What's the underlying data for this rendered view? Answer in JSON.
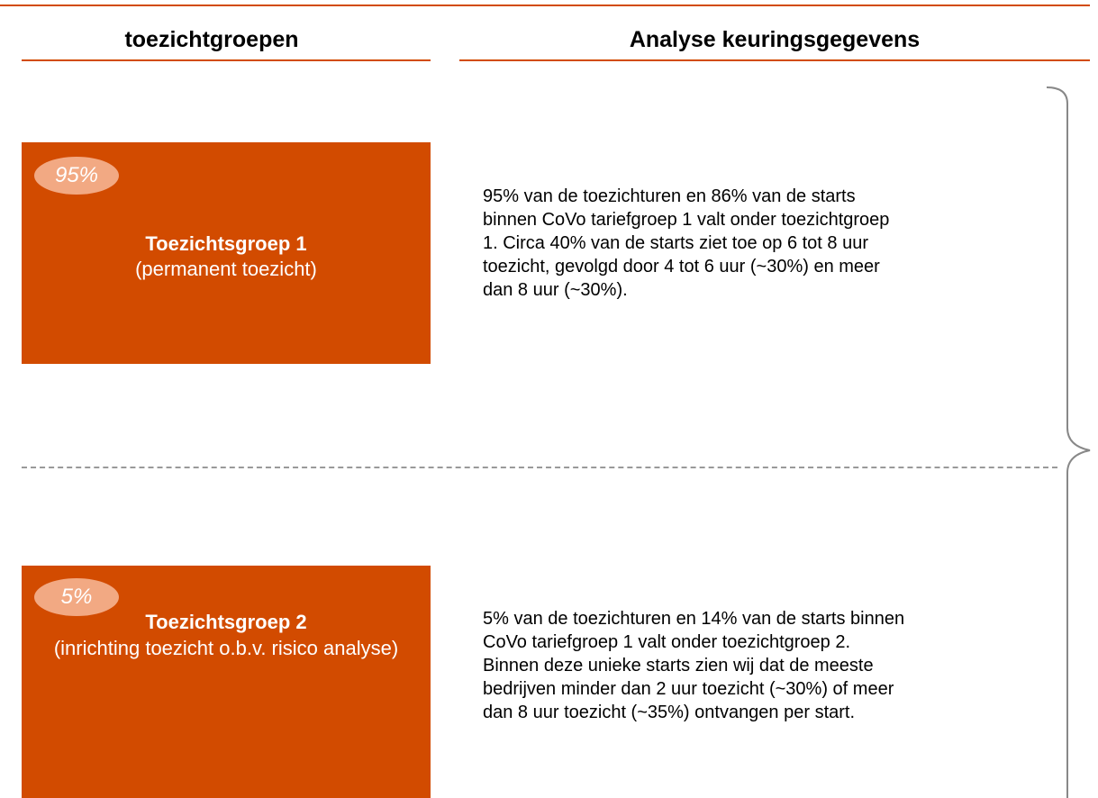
{
  "headers": {
    "left": "toezichtgroepen",
    "right": "Analyse keuringsgegevens"
  },
  "groups": [
    {
      "badge": "95%",
      "title": "Toezichtsgroep 1",
      "subtitle": "(permanent toezicht)",
      "lines": [
        "95% van de toezichturen en 86% van de starts",
        "binnen CoVo tariefgroep 1 valt onder toezichtgroep",
        "1. Circa 40% van de starts ziet toe op 6 tot 8 uur",
        "toezicht, gevolgd door 4 tot 6 uur (~30%) en meer",
        "dan 8 uur (~30%)."
      ]
    },
    {
      "badge": "5%",
      "title": "Toezichtsgroep 2",
      "subtitle": "(inrichting toezicht o.b.v. risico analyse)",
      "lines": [
        "5% van de toezichturen en 14% van de starts binnen",
        "CoVo tariefgroep 1 valt onder toezichtgroep 2.",
        "Binnen deze unieke starts zien wij dat de meeste",
        "bedrijven minder dan 2 uur toezicht (~30%) of meer",
        "dan 8 uur toezicht (~35%) ontvangen per start."
      ]
    }
  ]
}
